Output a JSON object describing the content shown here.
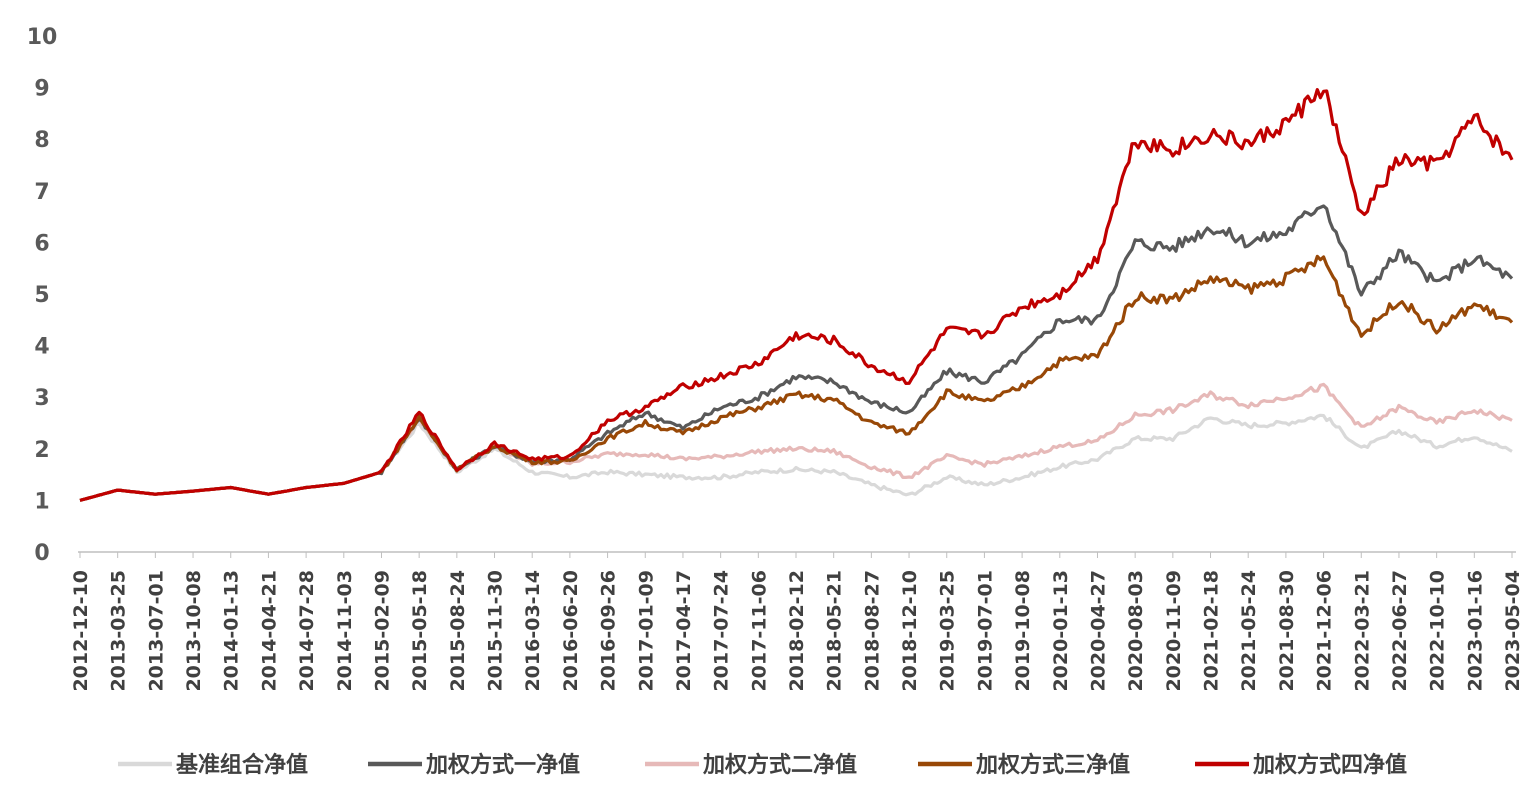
{
  "chart_data": {
    "type": "line",
    "title": "",
    "xlabel": "",
    "ylabel": "",
    "ylim": [
      0,
      10
    ],
    "yticks": [
      0,
      1,
      2,
      3,
      4,
      5,
      6,
      7,
      8,
      9,
      10
    ],
    "grid": false,
    "legend_position": "bottom",
    "x_tick_labels": [
      "2012-12-10",
      "2013-03-25",
      "2013-07-01",
      "2013-10-08",
      "2014-01-13",
      "2014-04-21",
      "2014-07-28",
      "2014-11-03",
      "2015-02-09",
      "2015-05-18",
      "2015-08-24",
      "2015-11-30",
      "2016-03-14",
      "2016-06-20",
      "2016-09-26",
      "2017-01-09",
      "2017-04-17",
      "2017-07-24",
      "2017-11-06",
      "2018-02-12",
      "2018-05-21",
      "2018-08-27",
      "2018-12-10",
      "2019-03-25",
      "2019-07-01",
      "2019-10-08",
      "2020-01-13",
      "2020-04-27",
      "2020-08-03",
      "2020-11-09",
      "2021-02-18",
      "2021-05-24",
      "2021-08-30",
      "2021-12-06",
      "2022-03-21",
      "2022-06-27",
      "2022-10-10",
      "2023-01-16",
      "2023-05-04"
    ],
    "series": [
      {
        "name": "基准组合净值",
        "color": "#d9d9d9",
        "values": [
          1.0,
          1.2,
          1.12,
          1.18,
          1.25,
          1.12,
          1.25,
          1.33,
          1.55,
          2.5,
          1.55,
          2.0,
          1.55,
          1.45,
          1.55,
          1.5,
          1.45,
          1.45,
          1.55,
          1.6,
          1.55,
          1.3,
          1.1,
          1.45,
          1.3,
          1.45,
          1.65,
          1.8,
          2.2,
          2.2,
          2.6,
          2.45,
          2.5,
          2.65,
          2.0,
          2.35,
          2.05,
          2.25,
          1.95
        ]
      },
      {
        "name": "加权方式一净值",
        "color": "#595959",
        "values": [
          1.0,
          1.2,
          1.12,
          1.18,
          1.25,
          1.12,
          1.25,
          1.33,
          1.55,
          2.6,
          1.6,
          2.05,
          1.75,
          1.8,
          2.3,
          2.7,
          2.4,
          2.8,
          3.0,
          3.4,
          3.3,
          2.9,
          2.7,
          3.5,
          3.3,
          3.8,
          4.5,
          4.5,
          6.0,
          5.9,
          6.3,
          6.0,
          6.2,
          6.8,
          5.0,
          5.8,
          5.2,
          5.7,
          5.3
        ]
      },
      {
        "name": "加权方式二净值",
        "color": "#e6b9b8",
        "values": [
          1.0,
          1.2,
          1.12,
          1.18,
          1.25,
          1.12,
          1.25,
          1.33,
          1.55,
          2.6,
          1.6,
          2.05,
          1.7,
          1.75,
          1.9,
          1.9,
          1.8,
          1.85,
          1.95,
          2.0,
          1.95,
          1.65,
          1.45,
          1.85,
          1.7,
          1.85,
          2.05,
          2.15,
          2.65,
          2.75,
          3.05,
          2.85,
          3.0,
          3.2,
          2.4,
          2.8,
          2.5,
          2.75,
          2.55
        ]
      },
      {
        "name": "加权方式三净值",
        "color": "#984807",
        "values": [
          1.0,
          1.2,
          1.12,
          1.18,
          1.25,
          1.12,
          1.25,
          1.33,
          1.55,
          2.6,
          1.6,
          2.05,
          1.75,
          1.75,
          2.2,
          2.5,
          2.3,
          2.6,
          2.8,
          3.05,
          2.95,
          2.5,
          2.3,
          3.1,
          2.9,
          3.2,
          3.7,
          3.8,
          4.95,
          4.9,
          5.3,
          5.1,
          5.3,
          5.7,
          4.2,
          4.9,
          4.3,
          4.8,
          4.45
        ]
      },
      {
        "name": "加权方式四净值",
        "color": "#c00000",
        "values": [
          1.0,
          1.2,
          1.12,
          1.18,
          1.25,
          1.12,
          1.25,
          1.33,
          1.55,
          2.7,
          1.6,
          2.1,
          1.8,
          1.85,
          2.55,
          2.8,
          3.2,
          3.4,
          3.65,
          4.2,
          4.1,
          3.6,
          3.3,
          4.3,
          4.2,
          4.75,
          5.0,
          5.7,
          8.0,
          7.8,
          8.1,
          7.9,
          8.3,
          9.0,
          6.5,
          7.6,
          7.5,
          8.4,
          7.6
        ]
      }
    ]
  }
}
